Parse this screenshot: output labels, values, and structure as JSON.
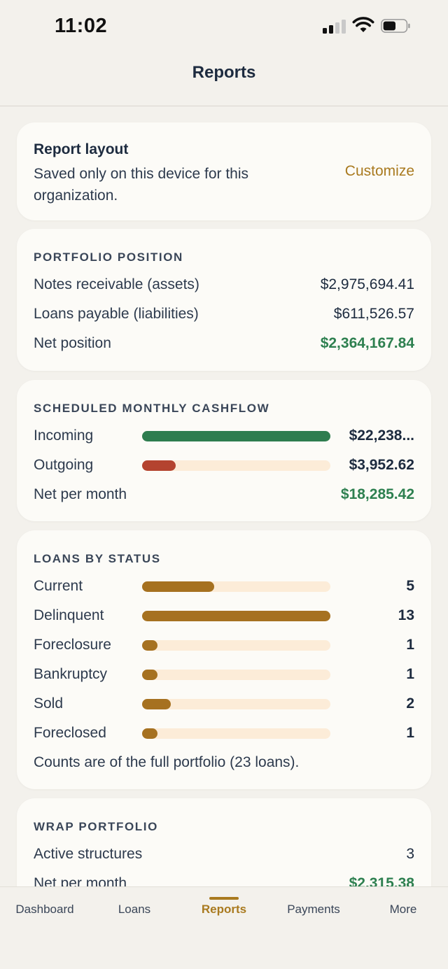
{
  "status_bar": {
    "time": "11:02"
  },
  "header": {
    "title": "Reports"
  },
  "layout_card": {
    "title": "Report layout",
    "subtitle": "Saved only on this device for this organization.",
    "customize_label": "Customize"
  },
  "portfolio_position": {
    "title": "PORTFOLIO POSITION",
    "rows": [
      {
        "label": "Notes receivable (assets)",
        "value": "$2,975,694.41"
      },
      {
        "label": "Loans payable (liabilities)",
        "value": "$611,526.57"
      },
      {
        "label": "Net position",
        "value": "$2,364,167.84"
      }
    ]
  },
  "cashflow": {
    "title": "SCHEDULED MONTHLY CASHFLOW",
    "rows": [
      {
        "label": "Incoming",
        "value": "$22,238...",
        "fraction": 1.0,
        "color": "#2e7d4f"
      },
      {
        "label": "Outgoing",
        "value": "$3,952.62",
        "fraction": 0.18,
        "color": "#b4432f"
      }
    ],
    "net": {
      "label": "Net per month",
      "value": "$18,285.42"
    }
  },
  "loans_by_status": {
    "title": "LOANS BY STATUS",
    "bar_color": "#a67120",
    "rows": [
      {
        "label": "Current",
        "value": "5",
        "count": 5
      },
      {
        "label": "Delinquent",
        "value": "13",
        "count": 13
      },
      {
        "label": "Foreclosure",
        "value": "1",
        "count": 1
      },
      {
        "label": "Bankruptcy",
        "value": "1",
        "count": 1
      },
      {
        "label": "Sold",
        "value": "2",
        "count": 2
      },
      {
        "label": "Foreclosed",
        "value": "1",
        "count": 1
      }
    ],
    "note": "Counts are of the full portfolio (23 loans)."
  },
  "wrap_portfolio": {
    "title": "WRAP PORTFOLIO",
    "rows": [
      {
        "label": "Active structures",
        "value": "3"
      },
      {
        "label": "Net per month",
        "value": "$2,315.38"
      }
    ]
  },
  "tabs": [
    {
      "label": "Dashboard"
    },
    {
      "label": "Loans"
    },
    {
      "label": "Reports",
      "active": true
    },
    {
      "label": "Payments"
    },
    {
      "label": "More"
    }
  ],
  "colors": {
    "accent": "#a97a1f",
    "positive": "#2e8050",
    "negative": "#b4432f"
  }
}
